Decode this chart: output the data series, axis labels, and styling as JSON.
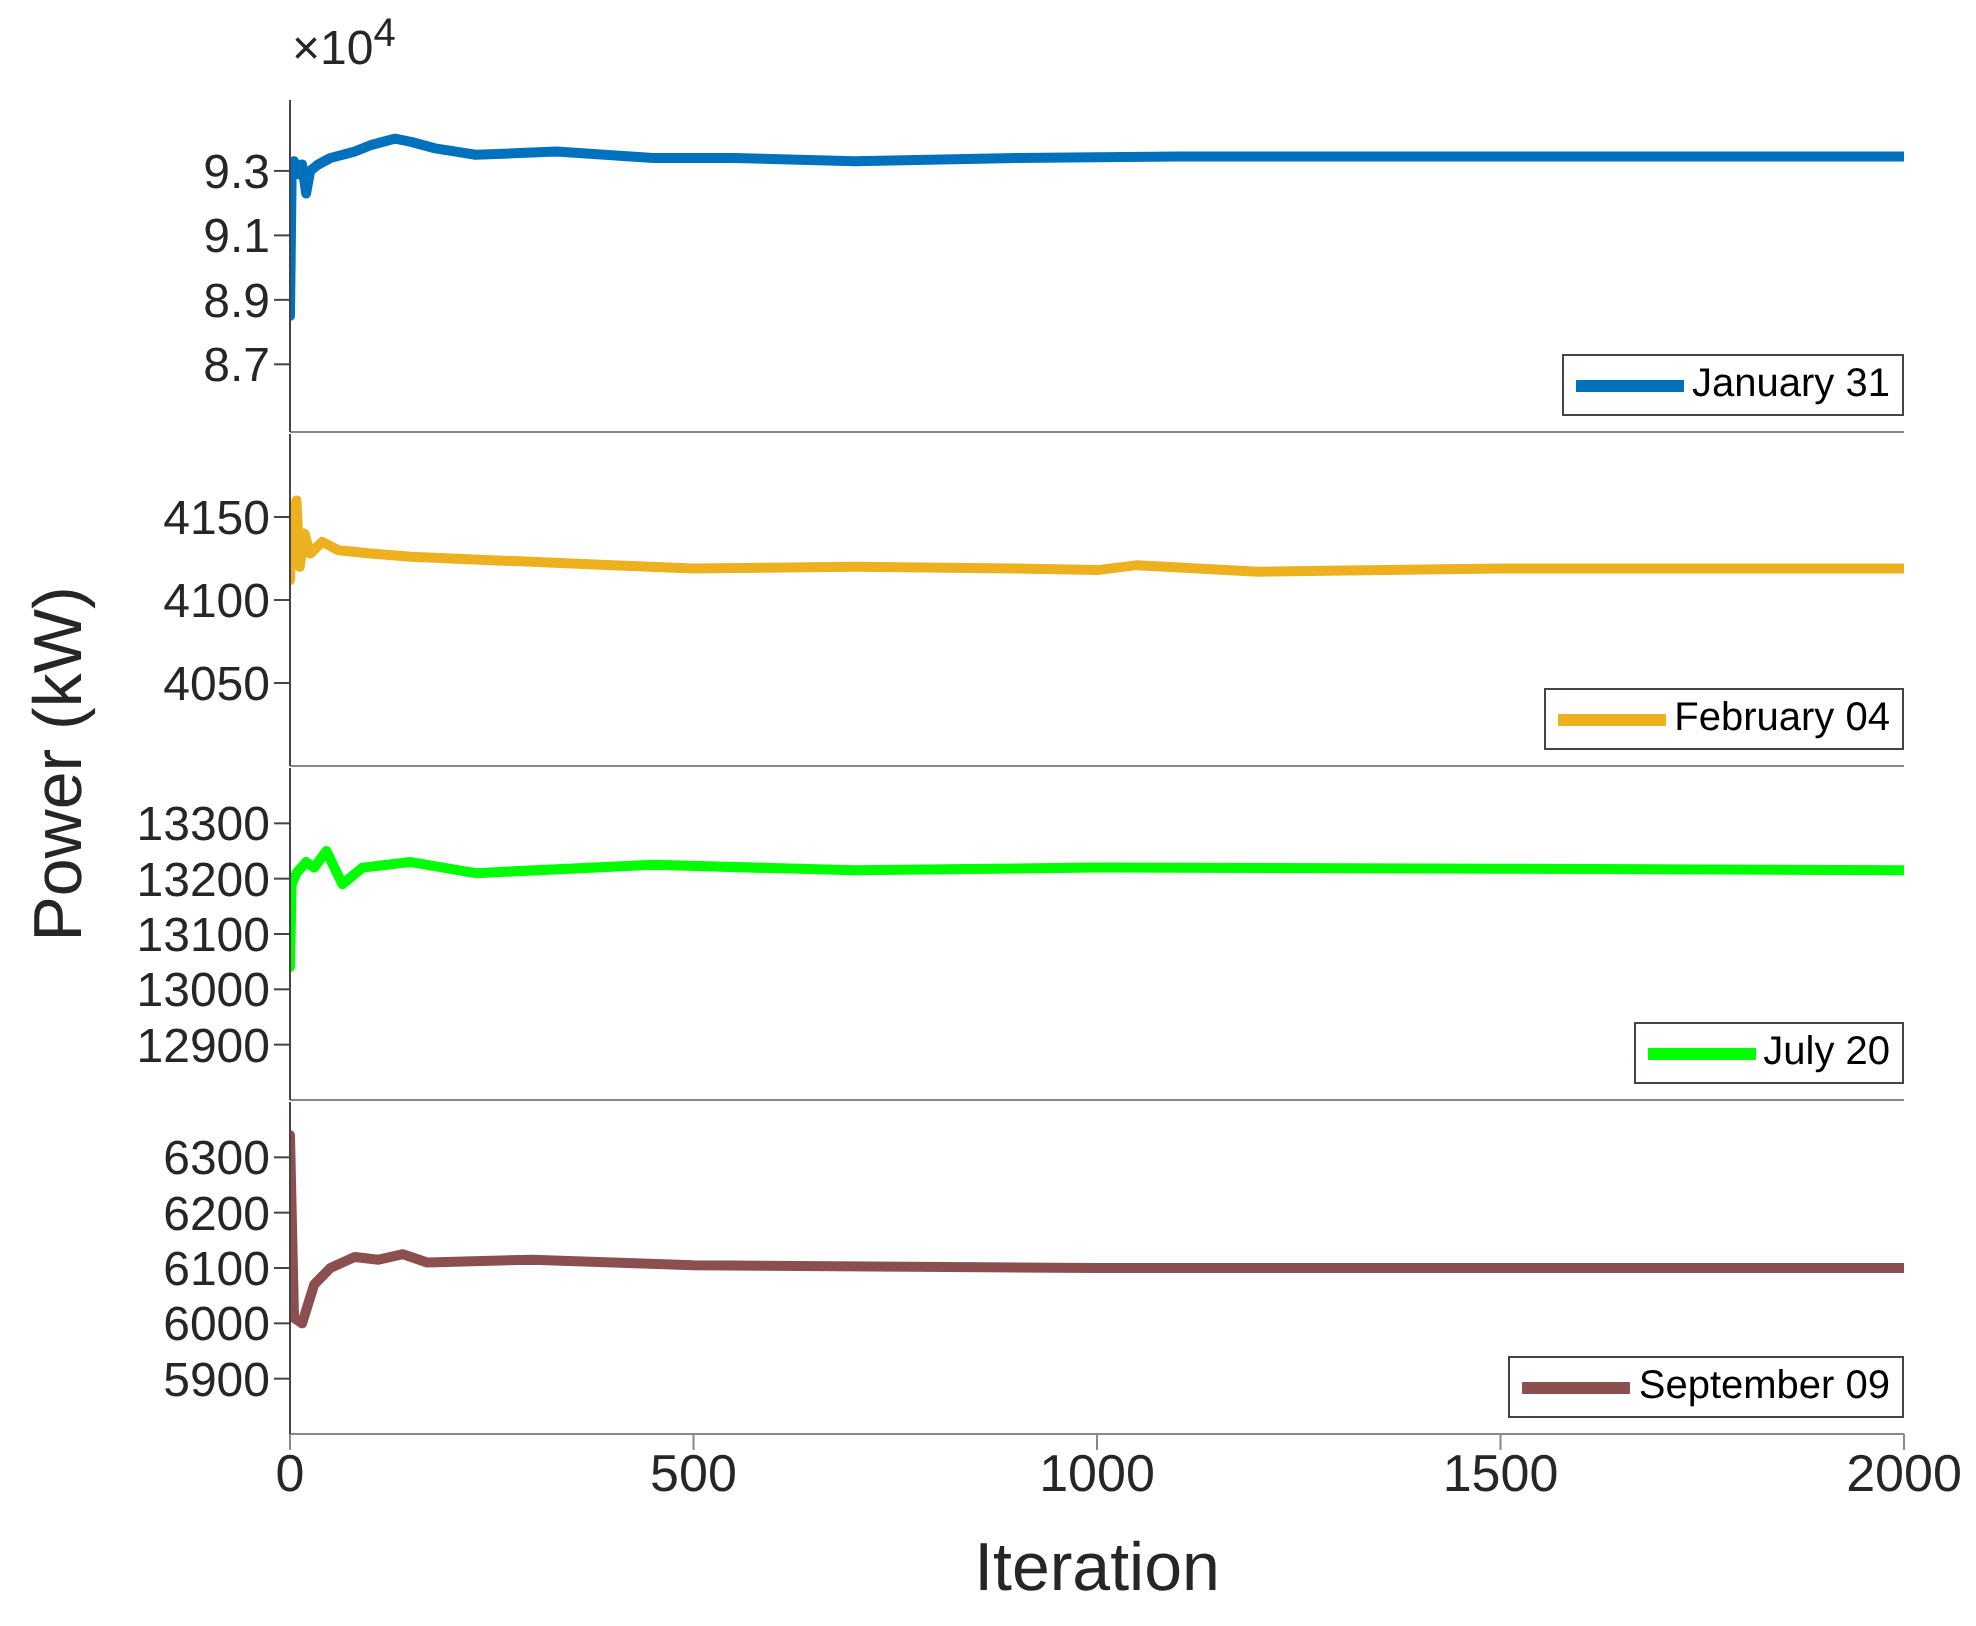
{
  "chart_data": [
    {
      "type": "line",
      "x": [
        0,
        2,
        5,
        10,
        15,
        20,
        25,
        35,
        50,
        80,
        100,
        130,
        150,
        180,
        230,
        330,
        450,
        550,
        700,
        900,
        1100,
        1500,
        2000
      ],
      "series": [
        {
          "name": "January 31",
          "color": "#0072bd",
          "values": [
            8.85,
            9.28,
            9.33,
            9.29,
            9.32,
            9.23,
            9.3,
            9.32,
            9.34,
            9.36,
            9.38,
            9.4,
            9.39,
            9.37,
            9.35,
            9.36,
            9.34,
            9.34,
            9.33,
            9.34,
            9.345,
            9.345,
            9.345
          ]
        }
      ],
      "xlim": [
        0,
        2000
      ],
      "xticks": [
        0,
        500,
        1000,
        1500,
        2000
      ],
      "ylim": [
        8.49,
        9.52
      ],
      "yticks": [
        8.7,
        8.9,
        9.1,
        9.3
      ],
      "annotations": [
        "×10$^{4}$"
      ],
      "tick_labels": "y",
      "legend": "bottom right",
      "grid": false
    },
    {
      "type": "line",
      "x": [
        0,
        3,
        8,
        12,
        18,
        25,
        40,
        60,
        100,
        150,
        250,
        400,
        500,
        700,
        900,
        1000,
        1050,
        1200,
        1500,
        2000
      ],
      "series": [
        {
          "name": "February 04",
          "color": "#edb120",
          "values": [
            4112,
            4150,
            4160,
            4120,
            4140,
            4128,
            4135,
            4130,
            4128,
            4126,
            4124,
            4121,
            4119,
            4120,
            4119,
            4118,
            4121,
            4117,
            4119,
            4119
          ]
        }
      ],
      "xlim": [
        0,
        2000
      ],
      "xticks": [
        0,
        500,
        1000,
        1500,
        2000
      ],
      "ylim": [
        4000,
        4200
      ],
      "yticks": [
        4050,
        4100,
        4150
      ],
      "ylabel": "Power (kW)",
      "tick_labels": "y",
      "legend": "bottom right",
      "grid": false
    },
    {
      "type": "line",
      "x": [
        0,
        2,
        8,
        20,
        30,
        45,
        65,
        90,
        150,
        230,
        450,
        700,
        1000,
        1500,
        2000
      ],
      "series": [
        {
          "name": "July 20",
          "color": "#00ff00",
          "values": [
            13040,
            13190,
            13210,
            13230,
            13220,
            13250,
            13190,
            13220,
            13230,
            13210,
            13225,
            13215,
            13220,
            13218,
            13215
          ]
        }
      ],
      "xlim": [
        0,
        2000
      ],
      "xticks": [
        0,
        500,
        1000,
        1500,
        2000
      ],
      "ylim": [
        12800,
        13400
      ],
      "yticks": [
        12900,
        13000,
        13100,
        13200,
        13300
      ],
      "tick_labels": "y",
      "legend": "bottom right",
      "grid": false
    },
    {
      "type": "line",
      "x": [
        0,
        5,
        15,
        30,
        50,
        80,
        110,
        140,
        170,
        300,
        500,
        1000,
        1500,
        2000
      ],
      "series": [
        {
          "name": "September 09",
          "color": "#8b4f4f",
          "values": [
            6340,
            6010,
            6000,
            6070,
            6100,
            6120,
            6115,
            6125,
            6110,
            6115,
            6105,
            6100,
            6100,
            6100
          ]
        }
      ],
      "xlim": [
        0,
        2000
      ],
      "xticks": [
        0,
        500,
        1000,
        1500,
        2000
      ],
      "ylim": [
        5800,
        6400
      ],
      "yticks": [
        5900,
        6000,
        6100,
        6200,
        6300
      ],
      "xlabel": "Iteration",
      "legend": "bottom right",
      "grid": false
    }
  ]
}
